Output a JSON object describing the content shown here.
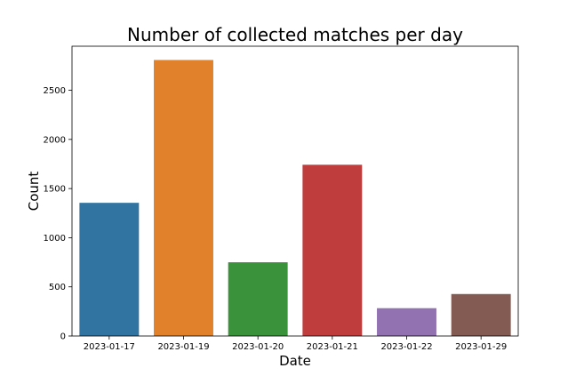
{
  "chart_data": {
    "type": "bar",
    "title": "Number of collected matches per day",
    "xlabel": "Date",
    "ylabel": "Count",
    "categories": [
      "2023-01-17",
      "2023-01-19",
      "2023-01-20",
      "2023-01-21",
      "2023-01-22",
      "2023-01-29"
    ],
    "values": [
      1355,
      2808,
      750,
      1742,
      283,
      427
    ],
    "colors": [
      "#3274a1",
      "#e1812c",
      "#3a923a",
      "#c03d3e",
      "#9372b2",
      "#845b53"
    ],
    "ylim": [
      0,
      2948
    ],
    "yticks": [
      0,
      500,
      1000,
      1500,
      2000,
      2500
    ],
    "grid": false,
    "legend": "none"
  }
}
